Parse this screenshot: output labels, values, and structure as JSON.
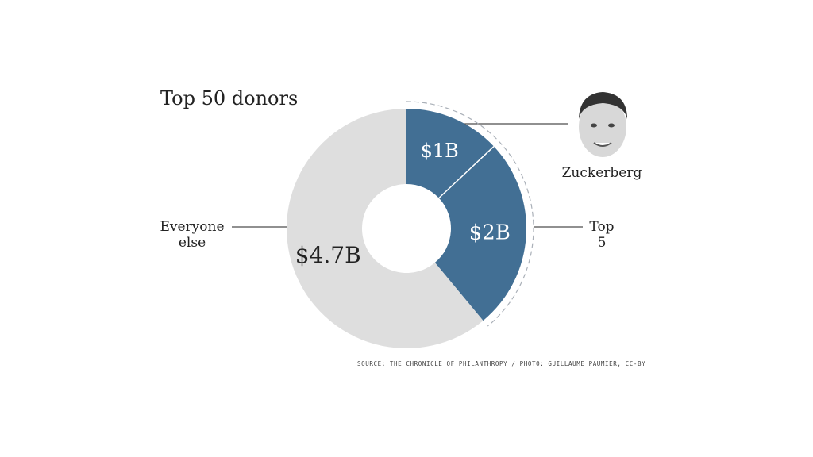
{
  "chart_data": {
    "type": "pie",
    "title": "Top 50 donors",
    "categories": [
      "Zuckerberg",
      "Top 5",
      "Everyone else"
    ],
    "values": [
      1,
      2,
      4.7
    ],
    "value_labels": [
      "$1B",
      "$2B",
      "$4.7B"
    ],
    "colors": [
      "#426f94",
      "#426f94",
      "#dedede"
    ],
    "source": "SOURCE: THE CHRONICLE OF PHILANTHROPY / PHOTO: GUILLAUME PAUMIER, CC-BY"
  }
}
